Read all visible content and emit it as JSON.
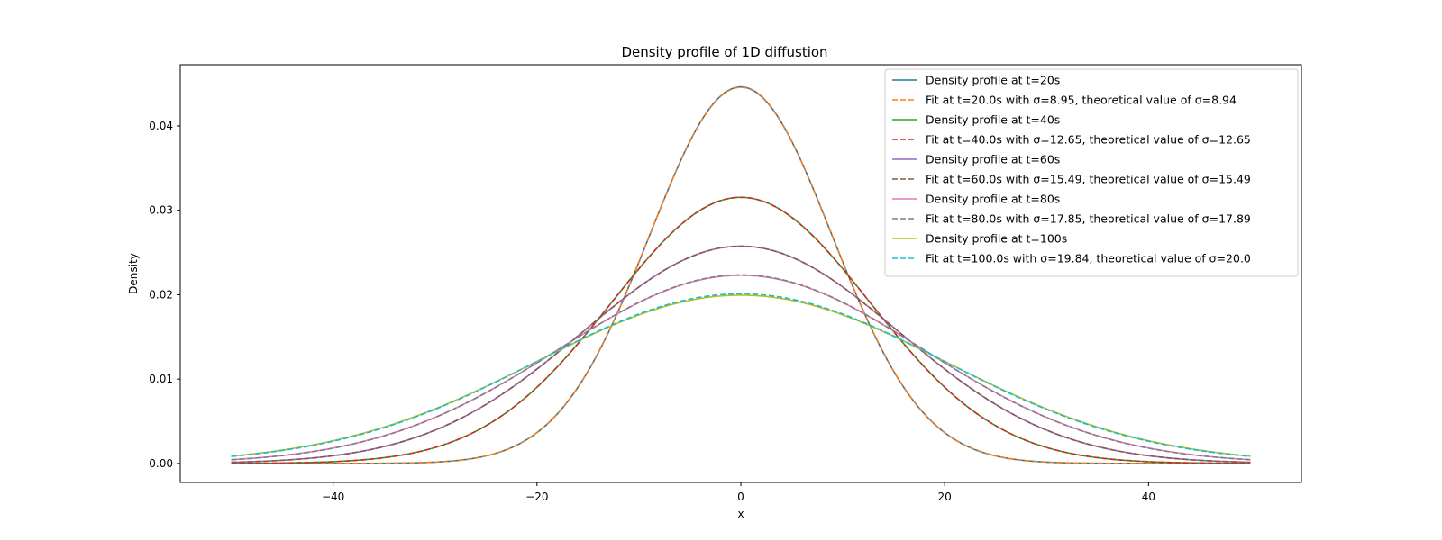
{
  "chart_data": {
    "type": "line",
    "title": "Density profile of 1D diffustion",
    "xlabel": "x",
    "ylabel": "Density",
    "xlim": [
      -55.0,
      55.0
    ],
    "ylim": [
      -0.00225,
      0.04725
    ],
    "xticks": [
      {
        "value": -40,
        "label": "−40"
      },
      {
        "value": -20,
        "label": "−20"
      },
      {
        "value": 0,
        "label": "0"
      },
      {
        "value": 20,
        "label": "20"
      },
      {
        "value": 40,
        "label": "40"
      }
    ],
    "yticks": [
      {
        "value": 0.0,
        "label": "0.00"
      },
      {
        "value": 0.01,
        "label": "0.01"
      },
      {
        "value": 0.02,
        "label": "0.02"
      },
      {
        "value": 0.03,
        "label": "0.03"
      },
      {
        "value": 0.04,
        "label": "0.04"
      }
    ],
    "grid": false,
    "legend_position": "upper-right",
    "x_range": [
      -50,
      50
    ],
    "series": [
      {
        "name": "Density profile at t=20s",
        "kind": "profile",
        "sigma": 8.94,
        "color": "#1f77b4",
        "dash": "solid"
      },
      {
        "name": "Fit at t=20.0s with σ=8.95, theoretical value of σ=8.94",
        "kind": "fit",
        "sigma": 8.95,
        "color": "#ff7f0e",
        "dash": "dashed"
      },
      {
        "name": "Density profile at t=40s",
        "kind": "profile",
        "sigma": 12.65,
        "color": "#2ca02c",
        "dash": "solid"
      },
      {
        "name": "Fit at t=40.0s with σ=12.65, theoretical value of σ=12.65",
        "kind": "fit",
        "sigma": 12.65,
        "color": "#d62728",
        "dash": "dashed"
      },
      {
        "name": "Density profile at t=60s",
        "kind": "profile",
        "sigma": 15.49,
        "color": "#9467bd",
        "dash": "solid"
      },
      {
        "name": "Fit at t=60.0s with σ=15.49, theoretical value of σ=15.49",
        "kind": "fit",
        "sigma": 15.49,
        "color": "#8c564b",
        "dash": "dashed"
      },
      {
        "name": "Density profile at t=80s",
        "kind": "profile",
        "sigma": 17.89,
        "color": "#e377c2",
        "dash": "solid"
      },
      {
        "name": "Fit at t=80.0s with σ=17.85, theoretical value of σ=17.89",
        "kind": "fit",
        "sigma": 17.85,
        "color": "#7f7f7f",
        "dash": "dashed"
      },
      {
        "name": "Density profile at t=100s",
        "kind": "profile",
        "sigma": 20.0,
        "color": "#bcbd22",
        "dash": "solid"
      },
      {
        "name": "Fit at t=100.0s with σ=19.84, theoretical value of σ=20.0",
        "kind": "fit",
        "sigma": 19.84,
        "color": "#17becf",
        "dash": "dashed"
      }
    ]
  }
}
